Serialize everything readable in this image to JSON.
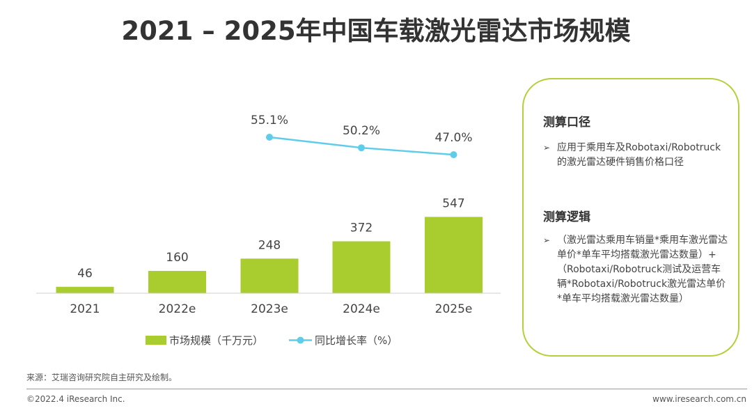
{
  "title": "2021 – 2025年中国车载激光雷达市场规模",
  "chart_data": {
    "type": "bar",
    "categories": [
      "2021",
      "2022e",
      "2023e",
      "2024e",
      "2025e"
    ],
    "series": [
      {
        "name": "市场规模（千万元）",
        "type": "bar",
        "values": [
          46,
          160,
          248,
          372,
          547
        ],
        "labels": [
          "46",
          "160",
          "248",
          "372",
          "547"
        ]
      },
      {
        "name": "同比增长率（%）",
        "type": "line",
        "values": [
          null,
          null,
          55.1,
          50.2,
          47.0
        ],
        "labels": [
          "",
          "",
          "55.1%",
          "50.2%",
          "47.0%"
        ]
      }
    ],
    "colors": {
      "bar": "#a9cd2e",
      "line": "#5fcdea"
    }
  },
  "box": {
    "heading1": "测算口径",
    "item1": "应用于乘用车及Robotaxi/Robotruck的激光雷达硬件销售价格口径",
    "heading2": "测算逻辑",
    "item2": "（激光雷达乘用车销量*乘用车激光雷达单价*单车平均搭载激光雷达数量）+（Robotaxi/Robotruck测试及运营车辆*Robotaxi/Robotruck激光雷达单价*单车平均搭载激光雷达数量）",
    "bullet": "➢"
  },
  "footer": {
    "source": "来源：艾瑞咨询研究院自主研究及绘制。",
    "copyright": "©2022.4 iResearch Inc.",
    "site": "www.iresearch.com.cn"
  }
}
